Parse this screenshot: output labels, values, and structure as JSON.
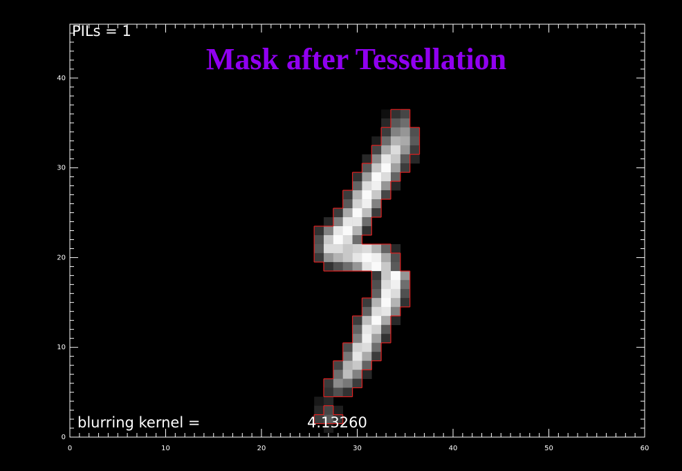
{
  "chart_data": {
    "type": "image",
    "title": "Mask after Tessellation",
    "annotations": [
      "PILs = 1",
      "blurring kernel =",
      "4.13260"
    ],
    "xlim": [
      0,
      60
    ],
    "ylim": [
      0,
      46
    ],
    "xticks": [
      0,
      10,
      20,
      30,
      40,
      50,
      60
    ],
    "yticks": [
      0,
      10,
      20,
      30,
      40
    ],
    "mask_color": "#e02020",
    "rows": [
      {
        "y": 36,
        "x0": 33,
        "values": [
          15,
          50,
          70
        ]
      },
      {
        "y": 35,
        "x0": 33,
        "values": [
          40,
          90,
          110
        ]
      },
      {
        "y": 34,
        "x0": 33,
        "values": [
          60,
          130,
          150,
          80
        ]
      },
      {
        "y": 33,
        "x0": 32,
        "values": [
          30,
          110,
          180,
          170,
          90
        ]
      },
      {
        "y": 32,
        "x0": 32,
        "values": [
          70,
          170,
          220,
          150,
          60
        ]
      },
      {
        "y": 31,
        "x0": 31,
        "values": [
          40,
          140,
          230,
          200,
          90,
          40
        ]
      },
      {
        "y": 30,
        "x0": 31,
        "values": [
          90,
          200,
          250,
          160,
          60
        ]
      },
      {
        "y": 29,
        "x0": 30,
        "values": [
          50,
          160,
          250,
          220,
          100
        ]
      },
      {
        "y": 28,
        "x0": 30,
        "values": [
          100,
          220,
          240,
          150,
          40
        ]
      },
      {
        "y": 27,
        "x0": 29,
        "values": [
          60,
          180,
          250,
          200,
          70
        ]
      },
      {
        "y": 26,
        "x0": 29,
        "values": [
          90,
          210,
          240,
          130
        ]
      },
      {
        "y": 25,
        "x0": 28,
        "values": [
          60,
          170,
          250,
          190,
          60
        ]
      },
      {
        "y": 24,
        "x0": 27,
        "values": [
          40,
          130,
          230,
          230,
          110
        ]
      },
      {
        "y": 23,
        "x0": 26,
        "values": [
          50,
          130,
          230,
          250,
          180,
          50
        ]
      },
      {
        "y": 22,
        "x0": 26,
        "values": [
          80,
          200,
          250,
          220,
          110
        ]
      },
      {
        "y": 21,
        "x0": 26,
        "values": [
          90,
          220,
          220,
          200,
          210,
          220,
          180,
          100,
          40
        ]
      },
      {
        "y": 20,
        "x0": 26,
        "values": [
          60,
          150,
          180,
          200,
          230,
          250,
          240,
          170,
          80
        ]
      },
      {
        "y": 19,
        "x0": 27,
        "values": [
          50,
          80,
          110,
          150,
          230,
          250,
          200,
          90
        ]
      },
      {
        "y": 18,
        "x0": 32,
        "values": [
          60,
          200,
          250,
          150
        ]
      },
      {
        "y": 17,
        "x0": 32,
        "values": [
          80,
          220,
          240,
          110
        ]
      },
      {
        "y": 16,
        "x0": 32,
        "values": [
          100,
          240,
          220,
          80
        ]
      },
      {
        "y": 15,
        "x0": 31,
        "values": [
          60,
          180,
          250,
          180,
          50
        ]
      },
      {
        "y": 14,
        "x0": 31,
        "values": [
          100,
          220,
          230,
          130
        ]
      },
      {
        "y": 13,
        "x0": 30,
        "values": [
          60,
          190,
          250,
          170,
          40
        ]
      },
      {
        "y": 12,
        "x0": 30,
        "values": [
          100,
          230,
          210,
          90
        ]
      },
      {
        "y": 11,
        "x0": 30,
        "values": [
          130,
          240,
          160,
          50
        ]
      },
      {
        "y": 10,
        "x0": 29,
        "values": [
          80,
          210,
          220,
          110
        ]
      },
      {
        "y": 9,
        "x0": 29,
        "values": [
          120,
          230,
          170,
          60
        ]
      },
      {
        "y": 8,
        "x0": 28,
        "values": [
          70,
          180,
          200,
          100
        ]
      },
      {
        "y": 7,
        "x0": 28,
        "values": [
          110,
          190,
          130,
          40
        ]
      },
      {
        "y": 6,
        "x0": 27,
        "values": [
          60,
          140,
          120,
          60
        ]
      },
      {
        "y": 5,
        "x0": 27,
        "values": [
          50,
          80,
          50
        ]
      },
      {
        "y": 4,
        "x0": 26,
        "values": [
          25,
          40
        ]
      },
      {
        "y": 3,
        "x0": 26,
        "values": [
          40,
          70,
          30
        ]
      },
      {
        "y": 2,
        "x0": 26,
        "values": [
          60,
          90,
          50
        ]
      },
      {
        "y": 1,
        "x0": 27,
        "values": [
          30
        ]
      }
    ]
  }
}
